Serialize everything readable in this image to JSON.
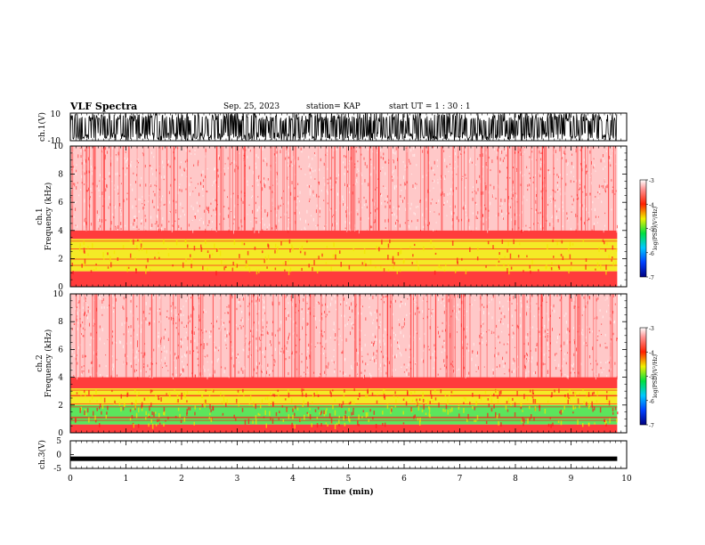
{
  "header": {
    "title": "VLF Spectra",
    "date": "Sep. 25, 2023",
    "station": "station= KAP",
    "start_ut": "start  UT =   1 : 30 : 1"
  },
  "colors": {
    "spectrogram_bg": "#ffffff",
    "low": "#ff9a9a",
    "mid": "#ff1a1a",
    "band_yellow": "#f2e600",
    "band_green": "#40e040",
    "waveform": "#000000"
  },
  "chart_data": [
    {
      "type": "line",
      "panel": "ch1-waveform",
      "ylabel": "ch.1(V)",
      "ylim": [
        -10,
        10
      ],
      "yticklabels": [
        "10",
        "-10"
      ],
      "description_of_signal": "dense noise spanning full range"
    },
    {
      "type": "heatmap",
      "panel": "ch1-spectrogram",
      "ylabel_line1": "ch.1",
      "ylabel_line2": "Frequency (kHz)",
      "ylim": [
        0,
        10
      ],
      "yticks": [
        0,
        2,
        4,
        6,
        8,
        10
      ],
      "bands_khz": [
        {
          "from": 0.0,
          "to": 1.1,
          "level": "mid"
        },
        {
          "from": 1.1,
          "to": 3.4,
          "level": "yellow"
        },
        {
          "from": 3.4,
          "to": 4.0,
          "level": "mid"
        },
        {
          "from": 4.0,
          "to": 10.0,
          "level": "low"
        }
      ],
      "colorbar": {
        "label": "log(PSD)(V²/Hz)",
        "range": [
          -7,
          -3
        ],
        "ticklabels": [
          "-3",
          "-4",
          "-5",
          "-6",
          "-7"
        ]
      }
    },
    {
      "type": "heatmap",
      "panel": "ch2-spectrogram",
      "ylabel_line1": "ch.2",
      "ylabel_line2": "Frequency (kHz)",
      "ylim": [
        0,
        10
      ],
      "yticks": [
        0,
        2,
        4,
        6,
        8,
        10
      ],
      "bands_khz": [
        {
          "from": 0.0,
          "to": 0.6,
          "level": "mid"
        },
        {
          "from": 0.6,
          "to": 2.0,
          "level": "green"
        },
        {
          "from": 2.0,
          "to": 3.2,
          "level": "yellow"
        },
        {
          "from": 3.2,
          "to": 4.0,
          "level": "mid"
        },
        {
          "from": 4.0,
          "to": 10.0,
          "level": "low"
        }
      ],
      "colorbar": {
        "label": "log(PSD)(V²/Hz)",
        "range": [
          -7,
          -3
        ],
        "ticklabels": [
          "-3",
          "-4",
          "-5",
          "-6",
          "-7"
        ]
      }
    },
    {
      "type": "line",
      "panel": "ch3-waveform",
      "ylabel": "ch.3(V)",
      "ylim": [
        -5,
        5
      ],
      "yticklabels": [
        "5",
        "0",
        "-5"
      ],
      "signal_level": -1.5
    }
  ],
  "xaxis": {
    "label": "Time (min)",
    "range": [
      0,
      10
    ],
    "ticks": [
      "0",
      "1",
      "2",
      "3",
      "4",
      "5",
      "6",
      "7",
      "8",
      "9",
      "10"
    ],
    "data_end": 9.83
  }
}
